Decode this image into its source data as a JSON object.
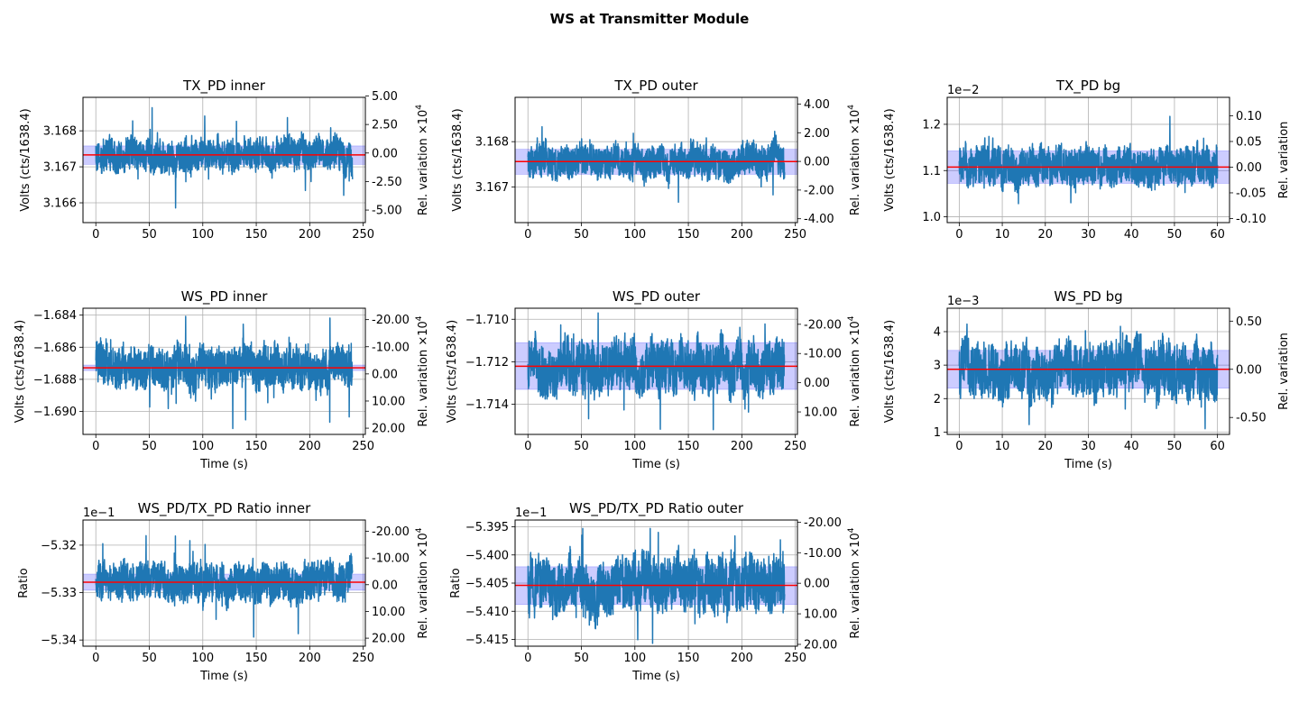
{
  "figure": {
    "suptitle": "WS at Transmitter Module"
  },
  "colors": {
    "series": "#1f77b4",
    "mean_line": "#ff0000",
    "band": "#0000ff",
    "grid": "#b0b0b0"
  },
  "chart_data": [
    {
      "type": "line",
      "title": "TX_PD inner",
      "xlabel": "",
      "ylabel": "Volts (cts/1638.4)",
      "y2label": "Rel. variation ×10^4",
      "xlim": [
        -12,
        252
      ],
      "xticks": [
        0,
        50,
        100,
        150,
        200,
        250
      ],
      "xtick_labels": [
        "0",
        "50",
        "100",
        "150",
        "200",
        "250"
      ],
      "ylim": [
        3.16545,
        3.16893
      ],
      "yticks": [
        3.166,
        3.167,
        3.168
      ],
      "ytick_labels": [
        "3.166",
        "3.167",
        "3.168"
      ],
      "y2lim": [
        -6.1,
        4.88
      ],
      "y2ticks": [
        -5,
        -2.5,
        0,
        2.5,
        5
      ],
      "y2tick_labels": [
        "-5.00",
        "-2.50",
        "0.00",
        "2.50",
        "5.00"
      ],
      "offset_label": "",
      "x_max": 240,
      "series": [
        {
          "mean": 3.16733,
          "band": [
            3.16707,
            3.16758
          ],
          "min": 3.16562,
          "max": 3.16885,
          "sigma": 0.00033
        }
      ],
      "grid": true
    },
    {
      "type": "line",
      "title": "TX_PD outer",
      "xlabel": "",
      "ylabel": "Volts (cts/1638.4)",
      "y2label": "Rel. variation ×10^4",
      "xlim": [
        -12,
        252
      ],
      "xticks": [
        0,
        50,
        100,
        150,
        200,
        250
      ],
      "xtick_labels": [
        "0",
        "50",
        "100",
        "150",
        "200",
        "250"
      ],
      "ylim": [
        3.16621,
        3.16898
      ],
      "yticks": [
        3.167,
        3.168
      ],
      "ytick_labels": [
        "3.167",
        "3.168"
      ],
      "y2lim": [
        -4.27,
        4.47
      ],
      "y2ticks": [
        -4,
        -2,
        0,
        2,
        4
      ],
      "y2tick_labels": [
        "-4.00",
        "-2.00",
        "0.00",
        "2.00",
        "4.00"
      ],
      "offset_label": "",
      "x_max": 240,
      "series": [
        {
          "mean": 3.16756,
          "band": [
            3.16728,
            3.16783
          ],
          "min": 3.16636,
          "max": 3.16881,
          "sigma": 0.00027
        }
      ],
      "grid": true
    },
    {
      "type": "line",
      "title": "TX_PD bg",
      "xlabel": "",
      "ylabel": "Volts (cts/1638.4)",
      "y2label": "Rel. variation",
      "xlim": [
        -2.8,
        62.8
      ],
      "xticks": [
        0,
        10,
        20,
        30,
        40,
        50,
        60
      ],
      "xtick_labels": [
        "0",
        "10",
        "20",
        "30",
        "40",
        "50",
        "60"
      ],
      "ylim": [
        0.9875,
        1.2583
      ],
      "yticks": [
        1.0,
        1.1,
        1.2
      ],
      "ytick_labels": [
        "1.0",
        "1.1",
        "1.2"
      ],
      "y2lim": [
        -0.108,
        0.136
      ],
      "y2ticks": [
        -0.1,
        -0.05,
        0,
        0.05,
        0.1
      ],
      "y2tick_labels": [
        "-0.10",
        "-0.05",
        "0.00",
        "0.05",
        "0.10"
      ],
      "offset_label": "1e−2",
      "x_max": 60,
      "series": [
        {
          "mean": 1.1075,
          "band": [
            1.0725,
            1.1425
          ],
          "min": 1.0,
          "max": 1.24,
          "sigma": 0.03
        }
      ],
      "grid": true
    },
    {
      "type": "line",
      "title": "WS_PD inner",
      "xlabel": "Time (s)",
      "ylabel": "Volts (cts/1638.4)",
      "y2label": "Rel. variation ×10^4",
      "xlim": [
        -12,
        252
      ],
      "xticks": [
        0,
        50,
        100,
        150,
        200,
        250
      ],
      "xtick_labels": [
        "0",
        "50",
        "100",
        "150",
        "200",
        "250"
      ],
      "ylim": [
        -1.69143,
        -1.68357
      ],
      "yticks": [
        -1.69,
        -1.688,
        -1.686,
        -1.684
      ],
      "ytick_labels": [
        "−1.690",
        "−1.688",
        "−1.686",
        "−1.684"
      ],
      "y2lim": [
        -24.2,
        22.3
      ],
      "y2ticks": [
        20,
        10,
        0,
        -10,
        -20
      ],
      "y2tick_labels": [
        "20.00",
        "10.00",
        "0.00",
        "-10.00",
        "-20.00"
      ],
      "y2_inverted": true,
      "offset_label": "",
      "x_max": 240,
      "series": [
        {
          "mean": -1.68728,
          "band": [
            -1.68745,
            -1.68711
          ],
          "min": -1.6913,
          "max": -1.6837,
          "sigma": 0.00095
        }
      ],
      "grid": true
    },
    {
      "type": "line",
      "title": "WS_PD outer",
      "xlabel": "Time (s)",
      "ylabel": "Volts (cts/1638.4)",
      "y2label": "Rel. variation ×10^4",
      "xlim": [
        -12,
        252
      ],
      "xticks": [
        0,
        50,
        100,
        150,
        200,
        250
      ],
      "xtick_labels": [
        "0",
        "50",
        "100",
        "150",
        "200",
        "250"
      ],
      "ylim": [
        -1.71542,
        -1.70948
      ],
      "yticks": [
        -1.714,
        -1.712,
        -1.71
      ],
      "ytick_labels": [
        "−1.714",
        "−1.712",
        "−1.710"
      ],
      "y2lim": [
        -25.5,
        17.7
      ],
      "y2ticks": [
        10,
        0,
        -10,
        -20
      ],
      "y2tick_labels": [
        "10.00",
        "0.00",
        "-10.00",
        "-20.00"
      ],
      "y2_inverted": true,
      "offset_label": "",
      "x_max": 240,
      "series": [
        {
          "mean": -1.71221,
          "band": [
            -1.7133,
            -1.7111
          ],
          "min": -1.7152,
          "max": -1.7097,
          "sigma": 0.0009
        }
      ],
      "grid": true
    },
    {
      "type": "line",
      "title": "WS_PD bg",
      "xlabel": "Time (s)",
      "ylabel": "Volts (cts/1638.4)",
      "y2label": "Rel. variation",
      "xlim": [
        -2.8,
        62.8
      ],
      "xticks": [
        0,
        10,
        20,
        30,
        40,
        50,
        60
      ],
      "xtick_labels": [
        "0",
        "10",
        "20",
        "30",
        "40",
        "50",
        "60"
      ],
      "ylim": [
        0.93,
        4.7
      ],
      "yticks": [
        1,
        2,
        3,
        4
      ],
      "ytick_labels": [
        "1",
        "2",
        "3",
        "4"
      ],
      "y2lim": [
        -0.676,
        0.634
      ],
      "y2ticks": [
        -0.5,
        0,
        0.5
      ],
      "y2tick_labels": [
        "-0.50",
        "0.00",
        "0.50"
      ],
      "offset_label": "1e−3",
      "x_max": 60,
      "series": [
        {
          "mean": 2.875,
          "band": [
            2.31,
            3.44
          ],
          "min": 1.1,
          "max": 4.55,
          "sigma": 0.6
        }
      ],
      "grid": true
    },
    {
      "type": "line",
      "title": "WS_PD/TX_PD Ratio inner",
      "xlabel": "Time (s)",
      "ylabel": "Ratio",
      "y2label": "Rel. variation ×10^4",
      "xlim": [
        -12,
        252
      ],
      "xticks": [
        0,
        50,
        100,
        150,
        200,
        250
      ],
      "xtick_labels": [
        "0",
        "50",
        "100",
        "150",
        "200",
        "250"
      ],
      "ylim": [
        -5.3413,
        -5.3147
      ],
      "yticks": [
        -5.34,
        -5.33,
        -5.32
      ],
      "ytick_labels": [
        "−5.34",
        "−5.33",
        "−5.32"
      ],
      "y2lim": [
        -24.2,
        23.0
      ],
      "y2ticks": [
        20,
        10,
        0,
        -10,
        -20
      ],
      "y2tick_labels": [
        "20.00",
        "10.00",
        "0.00",
        "-10.00",
        "-20.00"
      ],
      "y2_inverted": true,
      "offset_label": "1e−1",
      "x_max": 240,
      "series": [
        {
          "mean": -5.3278,
          "band": [
            -5.3295,
            -5.3261
          ],
          "min": -5.3398,
          "max": -5.3158,
          "sigma": 0.003
        }
      ],
      "grid": true
    },
    {
      "type": "line",
      "title": "WS_PD/TX_PD Ratio outer",
      "xlabel": "Time (s)",
      "ylabel": "Ratio",
      "y2label": "Rel. variation ×10^4",
      "xlim": [
        -12,
        252
      ],
      "xticks": [
        0,
        50,
        100,
        150,
        200,
        250
      ],
      "xtick_labels": [
        "0",
        "50",
        "100",
        "150",
        "200",
        "250"
      ],
      "ylim": [
        -5.4162,
        -5.3938
      ],
      "yticks": [
        -5.415,
        -5.41,
        -5.405,
        -5.4,
        -5.395
      ],
      "ytick_labels": [
        "−5.415",
        "−5.410",
        "−5.405",
        "−5.400",
        "−5.395"
      ],
      "y2lim": [
        -20.7,
        20.6
      ],
      "y2ticks": [
        20,
        10,
        0,
        -10,
        -20
      ],
      "y2tick_labels": [
        "20.00",
        "10.00",
        "0.00",
        "-10.00",
        "-20.00"
      ],
      "y2_inverted": true,
      "offset_label": "1e−1",
      "x_max": 240,
      "series": [
        {
          "mean": -5.4054,
          "band": [
            -5.4088,
            -5.4021
          ],
          "min": -5.4157,
          "max": -5.3953,
          "sigma": 0.0035
        }
      ],
      "grid": true
    }
  ]
}
